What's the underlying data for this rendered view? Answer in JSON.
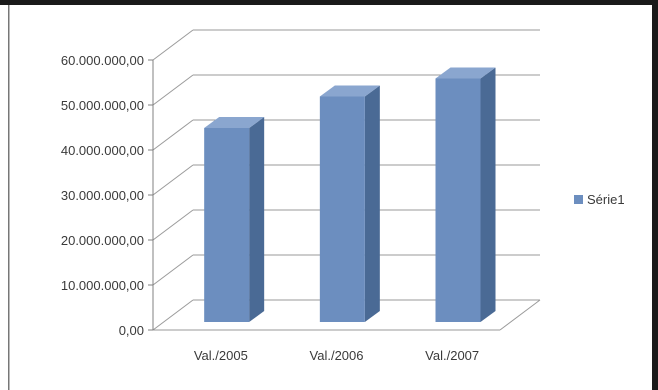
{
  "chart_data": {
    "type": "bar",
    "style": "3d-column",
    "title": "",
    "xlabel": "",
    "ylabel": "",
    "categories": [
      "Val./2005",
      "Val./2006",
      "Val./2007"
    ],
    "series": [
      {
        "name": "Série1",
        "values": [
          46000000,
          53000000,
          57000000
        ]
      }
    ],
    "y_ticks": [
      {
        "value": 0,
        "label": "0,00"
      },
      {
        "value": 10000000,
        "label": "10.000.000,00"
      },
      {
        "value": 20000000,
        "label": "20.000.000,00"
      },
      {
        "value": 30000000,
        "label": "30.000.000,00"
      },
      {
        "value": 40000000,
        "label": "40.000.000,00"
      },
      {
        "value": 50000000,
        "label": "50.000.000,00"
      },
      {
        "value": 60000000,
        "label": "60.000.000,00"
      }
    ],
    "ylim": [
      0,
      60000000
    ],
    "grid": true,
    "legend": {
      "position": "right"
    },
    "colors": {
      "bar_front": "#6c8ebf",
      "bar_side": "#4a6a95",
      "bar_top": "#8aa6cf",
      "grid": "#9a9a9a",
      "frame_border": "#1a1a1a"
    }
  }
}
